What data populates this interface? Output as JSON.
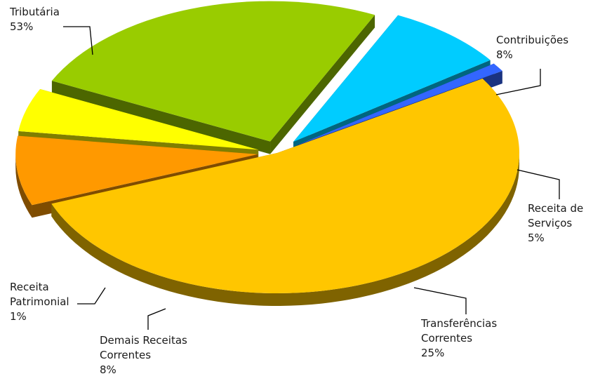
{
  "chart_data": {
    "type": "pie",
    "style": "3d-exploded",
    "slices": [
      {
        "label": [
          "Tributária"
        ],
        "percent_label": "53%",
        "value": 53,
        "top_color": "#ffc600",
        "side_color": "#7f6300"
      },
      {
        "label": [
          "Contribuições"
        ],
        "percent_label": "8%",
        "value": 8,
        "top_color": "#ff9900",
        "side_color": "#7f4c00"
      },
      {
        "label": [
          "Receita de",
          "Serviços"
        ],
        "percent_label": "5%",
        "value": 5,
        "top_color": "#ffff00",
        "side_color": "#7f7f00"
      },
      {
        "label": [
          "Transferências",
          "Correntes"
        ],
        "percent_label": "25%",
        "value": 25,
        "top_color": "#99cc00",
        "side_color": "#4c6600"
      },
      {
        "label": [
          "Demais Receitas",
          "Correntes"
        ],
        "percent_label": "8%",
        "value": 8,
        "top_color": "#00ccff",
        "side_color": "#006680"
      },
      {
        "label": [
          "Receita",
          "Patrimonial"
        ],
        "percent_label": "1%",
        "value": 1,
        "top_color": "#3366ff",
        "side_color": "#1a3380"
      }
    ]
  }
}
